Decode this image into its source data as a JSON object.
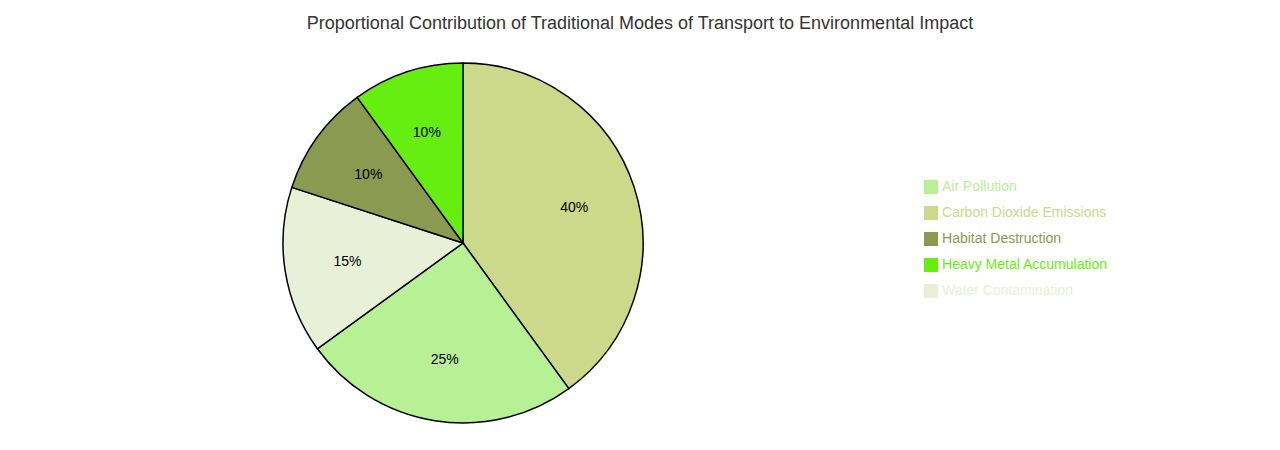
{
  "chart_data": {
    "type": "pie",
    "title": "Proportional Contribution of Traditional Modes of Transport to Environmental Impact",
    "categories": [
      "Carbon Dioxide Emissions",
      "Air Pollution",
      "Water Contamination",
      "Habitat Destruction",
      "Heavy Metal Accumulation"
    ],
    "values": [
      40,
      25,
      15,
      10,
      10
    ],
    "value_labels": [
      "40%",
      "25%",
      "15%",
      "10%",
      "10%"
    ],
    "colors": [
      "#cdd98a",
      "#b8f095",
      "#e8f0d8",
      "#8a9a50",
      "#66ee11"
    ],
    "data_labels": true,
    "legend": "right"
  }
}
